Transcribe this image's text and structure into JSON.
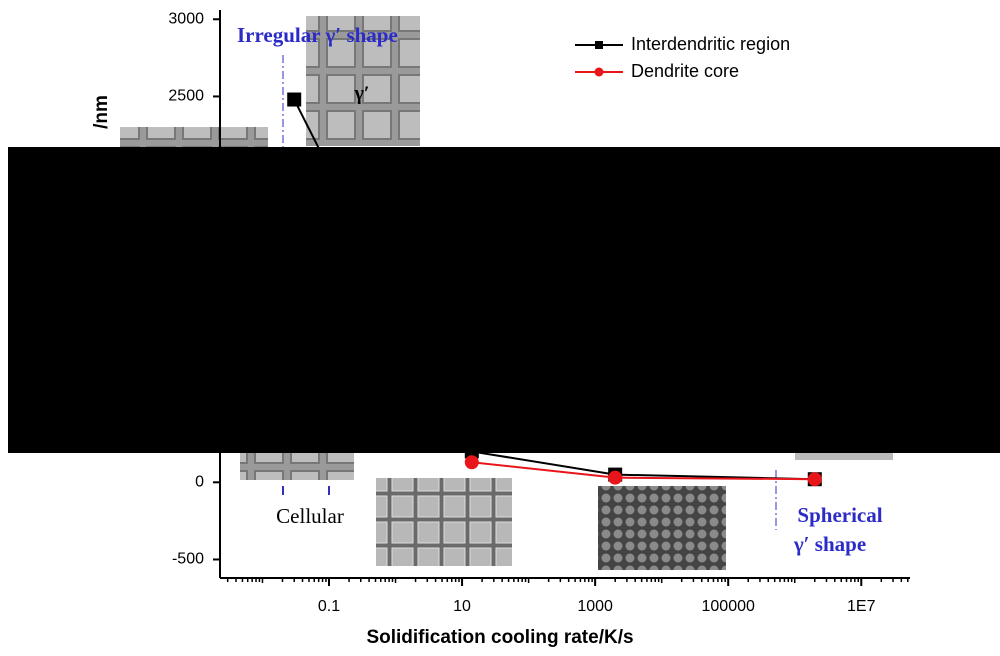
{
  "chart_data": {
    "type": "line",
    "x_label": "Solidification cooling rate/K/s",
    "y_label": "/nm",
    "xscale": "log",
    "xlim": [
      0.0023,
      54000000
    ],
    "xticks": [
      0.1,
      10,
      1000,
      100000,
      {
        "value": 10000000,
        "label": "1E7"
      }
    ],
    "ylim": [
      -620,
      3060
    ],
    "yticks": [
      -500,
      0,
      2500,
      3000
    ],
    "legend": "top-right",
    "series": [
      {
        "name": "Interdendritic region",
        "color": "#000000",
        "marker": "square",
        "x": [
          0.03,
          14,
          2000,
          2000000
        ],
        "values": [
          2480,
          200,
          50,
          20
        ]
      },
      {
        "name": "Dendrite core",
        "color": "#e8161b",
        "marker": "circle",
        "x": [
          14,
          2000,
          2000000
        ],
        "values": [
          130,
          30,
          20
        ]
      }
    ],
    "annotations": [
      "Irregular γ′ shape",
      "γ′",
      "Cellular",
      "Spherical",
      "γ′ shape"
    ]
  }
}
